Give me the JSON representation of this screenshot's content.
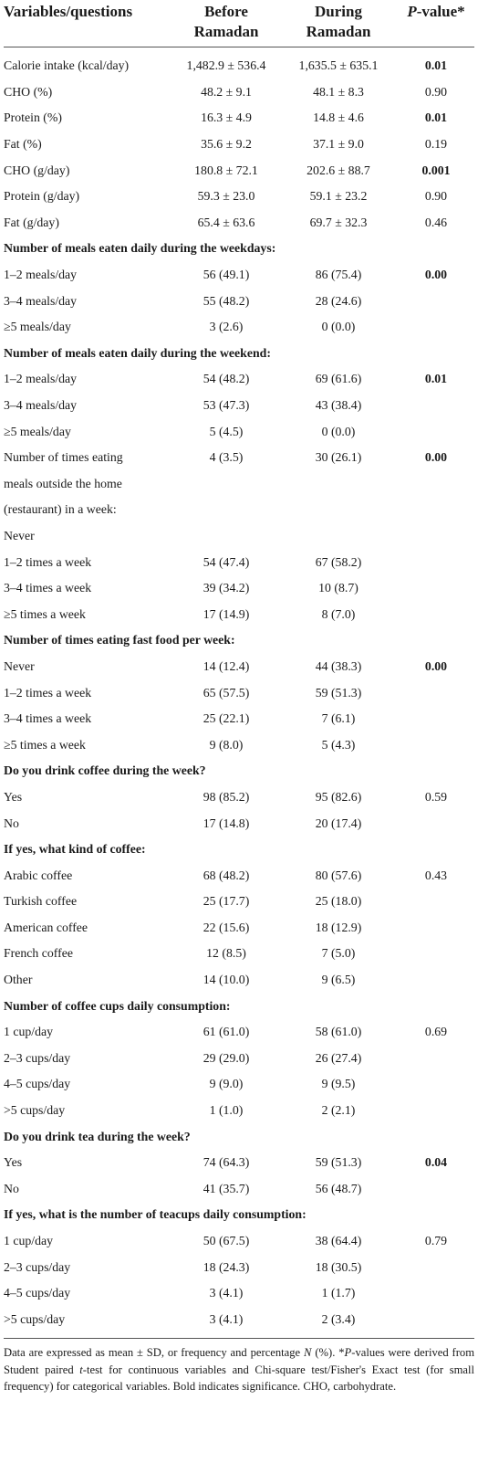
{
  "table": {
    "header": {
      "col_variables": "Variables/questions",
      "col_before": "Before Ramadan",
      "col_during": "During Ramadan",
      "col_pvalue_italic": "P",
      "col_pvalue_rest": "-value*"
    },
    "rows": [
      {
        "type": "data",
        "label": "Calorie intake (kcal/day)",
        "before": "1,482.9 ± 536.4",
        "during": "1,635.5 ± 635.1",
        "p": "0.01",
        "p_bold": true
      },
      {
        "type": "data",
        "label": "CHO (%)",
        "before": "48.2 ± 9.1",
        "during": "48.1 ± 8.3",
        "p": "0.90",
        "p_bold": false
      },
      {
        "type": "data",
        "label": "Protein (%)",
        "before": "16.3 ± 4.9",
        "during": "14.8 ± 4.6",
        "p": "0.01",
        "p_bold": true
      },
      {
        "type": "data",
        "label": "Fat (%)",
        "before": "35.6 ± 9.2",
        "during": "37.1 ± 9.0",
        "p": "0.19",
        "p_bold": false
      },
      {
        "type": "data",
        "label": "CHO (g/day)",
        "before": "180.8 ± 72.1",
        "during": "202.6 ± 88.7",
        "p": "0.001",
        "p_bold": true
      },
      {
        "type": "data",
        "label": "Protein (g/day)",
        "before": "59.3 ± 23.0",
        "during": "59.1 ± 23.2",
        "p": "0.90",
        "p_bold": false
      },
      {
        "type": "data",
        "label": "Fat (g/day)",
        "before": "65.4 ± 63.6",
        "during": "69.7 ± 32.3",
        "p": "0.46",
        "p_bold": false
      },
      {
        "type": "section",
        "label": "Number of meals eaten daily during the weekdays:"
      },
      {
        "type": "data",
        "label": "1–2 meals/day",
        "before": "56 (49.1)",
        "during": "86 (75.4)",
        "p": "0.00",
        "p_bold": true
      },
      {
        "type": "data",
        "label": "3–4 meals/day",
        "before": "55 (48.2)",
        "during": "28 (24.6)",
        "p": "",
        "p_bold": false
      },
      {
        "type": "data",
        "label": "≥5 meals/day",
        "before": "3 (2.6)",
        "during": "0 (0.0)",
        "p": "",
        "p_bold": false
      },
      {
        "type": "section",
        "label": "Number of meals eaten daily during the weekend:"
      },
      {
        "type": "data",
        "label": "1–2 meals/day",
        "before": "54 (48.2)",
        "during": "69 (61.6)",
        "p": "0.01",
        "p_bold": true
      },
      {
        "type": "data",
        "label": "3–4 meals/day",
        "before": "53 (47.3)",
        "during": "43 (38.4)",
        "p": "",
        "p_bold": false
      },
      {
        "type": "data",
        "label": "≥5 meals/day",
        "before": "5 (4.5)",
        "during": "0 (0.0)",
        "p": "",
        "p_bold": false
      },
      {
        "type": "data",
        "label": "Number of times eating",
        "before": "4 (3.5)",
        "during": "30 (26.1)",
        "p": "0.00",
        "p_bold": true
      },
      {
        "type": "data",
        "label": "meals outside the home",
        "before": "",
        "during": "",
        "p": "",
        "p_bold": false
      },
      {
        "type": "data",
        "label": "(restaurant) in a week:",
        "before": "",
        "during": "",
        "p": "",
        "p_bold": false
      },
      {
        "type": "data",
        "label": "Never",
        "before": "",
        "during": "",
        "p": "",
        "p_bold": false
      },
      {
        "type": "data",
        "label": "1–2 times a week",
        "before": "54 (47.4)",
        "during": "67 (58.2)",
        "p": "",
        "p_bold": false
      },
      {
        "type": "data",
        "label": "3–4 times a week",
        "before": "39 (34.2)",
        "during": "10 (8.7)",
        "p": "",
        "p_bold": false
      },
      {
        "type": "data",
        "label": "≥5 times a week",
        "before": "17 (14.9)",
        "during": "8 (7.0)",
        "p": "",
        "p_bold": false
      },
      {
        "type": "section",
        "label": "Number of times eating fast food per week:"
      },
      {
        "type": "data",
        "label": "Never",
        "before": "14 (12.4)",
        "during": "44 (38.3)",
        "p": "0.00",
        "p_bold": true
      },
      {
        "type": "data",
        "label": "1–2 times a week",
        "before": "65 (57.5)",
        "during": "59 (51.3)",
        "p": "",
        "p_bold": false
      },
      {
        "type": "data",
        "label": "3–4 times a week",
        "before": "25 (22.1)",
        "during": "7 (6.1)",
        "p": "",
        "p_bold": false
      },
      {
        "type": "data",
        "label": "≥5 times a week",
        "before": "9 (8.0)",
        "during": "5 (4.3)",
        "p": "",
        "p_bold": false
      },
      {
        "type": "section",
        "label": "Do you drink coffee during the week?"
      },
      {
        "type": "data",
        "label": "Yes",
        "before": "98 (85.2)",
        "during": "95 (82.6)",
        "p": "0.59",
        "p_bold": false
      },
      {
        "type": "data",
        "label": "No",
        "before": "17 (14.8)",
        "during": "20 (17.4)",
        "p": "",
        "p_bold": false
      },
      {
        "type": "section",
        "label": "If yes, what kind of coffee:"
      },
      {
        "type": "data",
        "label": "Arabic coffee",
        "before": "68 (48.2)",
        "during": "80 (57.6)",
        "p": "0.43",
        "p_bold": false
      },
      {
        "type": "data",
        "label": "Turkish coffee",
        "before": "25 (17.7)",
        "during": "25 (18.0)",
        "p": "",
        "p_bold": false
      },
      {
        "type": "data",
        "label": "American coffee",
        "before": "22 (15.6)",
        "during": "18 (12.9)",
        "p": "",
        "p_bold": false
      },
      {
        "type": "data",
        "label": "French coffee",
        "before": "12 (8.5)",
        "during": "7 (5.0)",
        "p": "",
        "p_bold": false
      },
      {
        "type": "data",
        "label": "Other",
        "before": "14 (10.0)",
        "during": "9 (6.5)",
        "p": "",
        "p_bold": false
      },
      {
        "type": "section",
        "label": "Number of coffee cups daily consumption:"
      },
      {
        "type": "data",
        "label": "1 cup/day",
        "before": "61 (61.0)",
        "during": "58 (61.0)",
        "p": "0.69",
        "p_bold": false
      },
      {
        "type": "data",
        "label": "2–3 cups/day",
        "before": "29 (29.0)",
        "during": "26 (27.4)",
        "p": "",
        "p_bold": false
      },
      {
        "type": "data",
        "label": "4–5 cups/day",
        "before": "9 (9.0)",
        "during": "9 (9.5)",
        "p": "",
        "p_bold": false
      },
      {
        "type": "data",
        "label": ">5 cups/day",
        "before": "1 (1.0)",
        "during": "2 (2.1)",
        "p": "",
        "p_bold": false
      },
      {
        "type": "section",
        "label": "Do you drink tea during the week?"
      },
      {
        "type": "data",
        "label": "Yes",
        "before": "74 (64.3)",
        "during": "59 (51.3)",
        "p": "0.04",
        "p_bold": true
      },
      {
        "type": "data",
        "label": "No",
        "before": "41 (35.7)",
        "during": "56 (48.7)",
        "p": "",
        "p_bold": false
      },
      {
        "type": "section",
        "label": "If yes, what is the number of teacups daily consumption:"
      },
      {
        "type": "data",
        "label": "1 cup/day",
        "before": "50 (67.5)",
        "during": "38 (64.4)",
        "p": "0.79",
        "p_bold": false
      },
      {
        "type": "data",
        "label": "2–3 cups/day",
        "before": "18 (24.3)",
        "during": "18 (30.5)",
        "p": "",
        "p_bold": false
      },
      {
        "type": "data",
        "label": "4–5 cups/day",
        "before": "3 (4.1)",
        "during": "1 (1.7)",
        "p": "",
        "p_bold": false
      },
      {
        "type": "data",
        "label": ">5 cups/day",
        "before": "3 (4.1)",
        "during": "2 (3.4)",
        "p": "",
        "p_bold": false
      }
    ]
  },
  "footnote": {
    "part1": "Data are expressed as mean ± SD, or frequency and percentage ",
    "n_italic": "N",
    "part2": " (%). *",
    "p_italic": "P",
    "part3": "-values were derived from Student paired ",
    "t_italic": "t",
    "part4": "-test for continuous variables and Chi-square test/Fisher's Exact test (for small frequency) for categorical variables. Bold indicates significance. CHO, carbohydrate."
  }
}
